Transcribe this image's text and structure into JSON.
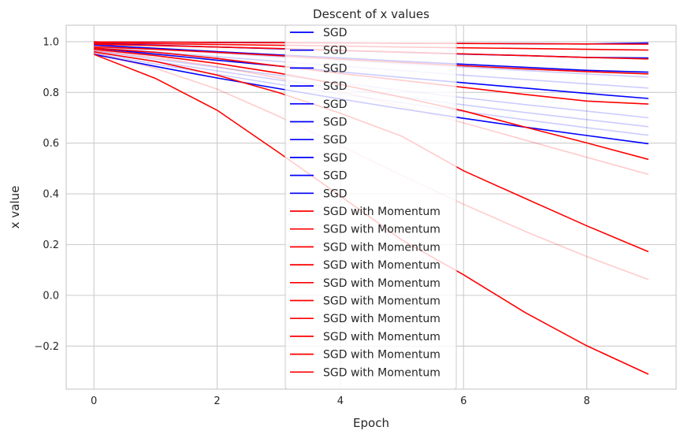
{
  "chart_data": {
    "type": "line",
    "title": "Descent of x values",
    "xlabel": "Epoch",
    "ylabel": "x value",
    "xlim": [
      -0.45,
      9.45
    ],
    "ylim": [
      -0.37,
      1.065
    ],
    "x_ticks": [
      0,
      2,
      4,
      6,
      8
    ],
    "y_ticks": [
      -0.2,
      0.0,
      0.2,
      0.4,
      0.6,
      0.8,
      1.0
    ],
    "y_tick_labels": [
      "−0.2",
      "0.0",
      "0.2",
      "0.4",
      "0.6",
      "0.8",
      "1.0"
    ],
    "grid": true,
    "legend_position": "top-center",
    "x": [
      0,
      1,
      2,
      3,
      4,
      5,
      6,
      7,
      8,
      9
    ],
    "series": [
      {
        "name": "SGD",
        "color": "#0000ff",
        "opacity": 1.0,
        "values": [
          0.95,
          0.9025,
          0.857,
          0.815,
          0.774,
          0.735,
          0.698,
          0.663,
          0.63,
          0.598
        ]
      },
      {
        "name": "SGD",
        "color": "#0000ff",
        "opacity": 0.2,
        "values": [
          0.955,
          0.912,
          0.871,
          0.832,
          0.795,
          0.759,
          0.725,
          0.692,
          0.661,
          0.631
        ]
      },
      {
        "name": "SGD",
        "color": "#0000ff",
        "opacity": 0.2,
        "values": [
          0.96,
          0.922,
          0.885,
          0.849,
          0.815,
          0.783,
          0.751,
          0.721,
          0.693,
          0.665
        ]
      },
      {
        "name": "SGD",
        "color": "#0000ff",
        "opacity": 0.2,
        "values": [
          0.965,
          0.931,
          0.899,
          0.867,
          0.837,
          0.808,
          0.779,
          0.752,
          0.726,
          0.7
        ]
      },
      {
        "name": "SGD",
        "color": "#0000ff",
        "opacity": 1.0,
        "values": [
          0.975,
          0.951,
          0.927,
          0.904,
          0.881,
          0.859,
          0.838,
          0.817,
          0.796,
          0.776
        ]
      },
      {
        "name": "SGD",
        "color": "#0000ff",
        "opacity": 0.2,
        "values": [
          0.98,
          0.96,
          0.941,
          0.922,
          0.904,
          0.886,
          0.868,
          0.851,
          0.834,
          0.817
        ]
      },
      {
        "name": "SGD",
        "color": "#0000ff",
        "opacity": 0.2,
        "values": [
          0.985,
          0.97,
          0.956,
          0.941,
          0.927,
          0.913,
          0.9,
          0.886,
          0.873,
          0.86
        ]
      },
      {
        "name": "SGD",
        "color": "#0000ff",
        "opacity": 1.0,
        "values": [
          0.987,
          0.974,
          0.961,
          0.948,
          0.936,
          0.923,
          0.911,
          0.899,
          0.887,
          0.88
        ]
      },
      {
        "name": "SGD",
        "color": "#0000ff",
        "opacity": 1.0,
        "values": [
          0.993,
          0.986,
          0.979,
          0.972,
          0.965,
          0.958,
          0.951,
          0.945,
          0.938,
          0.936
        ]
      },
      {
        "name": "SGD",
        "color": "#0000ff",
        "opacity": 1.0,
        "values": [
          0.999,
          0.998,
          0.997,
          0.996,
          0.995,
          0.994,
          0.993,
          0.992,
          0.991,
          0.995
        ]
      },
      {
        "name": "SGD with Momentum",
        "color": "#ff0000",
        "opacity": 1.0,
        "values": [
          0.95,
          0.855,
          0.73,
          0.563,
          0.392,
          0.218,
          0.081,
          -0.068,
          -0.199,
          -0.311
        ]
      },
      {
        "name": "SGD with Momentum",
        "color": "#ff0000",
        "opacity": 0.2,
        "values": [
          0.955,
          0.895,
          0.813,
          0.706,
          0.59,
          0.473,
          0.359,
          0.252,
          0.153,
          0.062
        ]
      },
      {
        "name": "SGD with Momentum",
        "color": "#ff0000",
        "opacity": 1.0,
        "values": [
          0.96,
          0.922,
          0.868,
          0.799,
          0.718,
          0.627,
          0.491,
          0.382,
          0.274,
          0.172
        ]
      },
      {
        "name": "SGD with Momentum",
        "color": "#ff0000",
        "opacity": 0.2,
        "values": [
          0.965,
          0.938,
          0.902,
          0.857,
          0.804,
          0.744,
          0.68,
          0.612,
          0.544,
          0.477
        ]
      },
      {
        "name": "SGD with Momentum",
        "color": "#ff0000",
        "opacity": 1.0,
        "values": [
          0.97,
          0.945,
          0.914,
          0.876,
          0.831,
          0.781,
          0.727,
          0.663,
          0.601,
          0.536
        ]
      },
      {
        "name": "SGD with Momentum",
        "color": "#ff0000",
        "opacity": 1.0,
        "values": [
          0.975,
          0.958,
          0.934,
          0.904,
          0.875,
          0.848,
          0.82,
          0.792,
          0.766,
          0.754
        ]
      },
      {
        "name": "SGD with Momentum",
        "color": "#ff0000",
        "opacity": 1.0,
        "values": [
          0.98,
          0.97,
          0.958,
          0.945,
          0.931,
          0.918,
          0.905,
          0.893,
          0.882,
          0.873
        ]
      },
      {
        "name": "SGD with Momentum",
        "color": "#ff0000",
        "opacity": 1.0,
        "values": [
          0.99,
          0.985,
          0.979,
          0.973,
          0.966,
          0.959,
          0.952,
          0.945,
          0.938,
          0.932
        ]
      },
      {
        "name": "SGD with Momentum",
        "color": "#ff0000",
        "opacity": 1.0,
        "values": [
          0.995,
          0.992,
          0.989,
          0.986,
          0.983,
          0.979,
          0.976,
          0.973,
          0.97,
          0.967
        ]
      },
      {
        "name": "SGD with Momentum",
        "color": "#ff0000",
        "opacity": 1.0,
        "values": [
          0.999,
          0.998,
          0.997,
          0.996,
          0.995,
          0.994,
          0.993,
          0.992,
          0.991,
          0.99
        ]
      }
    ]
  }
}
